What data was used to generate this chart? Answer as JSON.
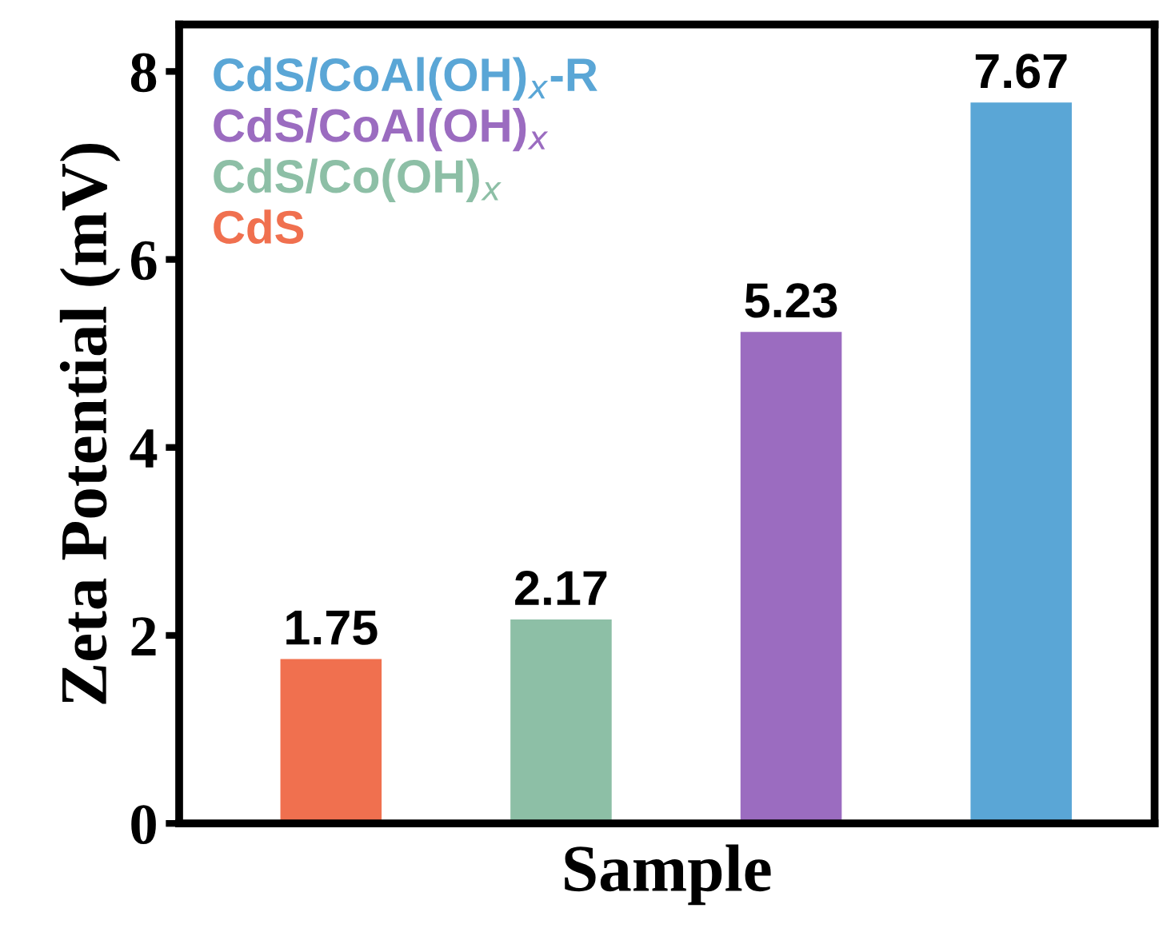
{
  "chart_data": {
    "type": "bar",
    "xlabel": "Sample",
    "ylabel": "Zeta Potential (mV)",
    "categories": [
      null,
      null,
      null,
      null
    ],
    "series": [
      {
        "name": "CdS/CoAl(OH)$_{x}$-R",
        "color": "#5aa6d6",
        "values": [
          null,
          null,
          null,
          7.67
        ]
      },
      {
        "name": "CdS/CoAl(OH)$_{x}$",
        "color": "#9b6cc0",
        "values": [
          null,
          null,
          5.23,
          null
        ]
      },
      {
        "name": "CdS/Co(OH)$_{x}$",
        "color": "#8dbfa6",
        "values": [
          null,
          2.17,
          null,
          null
        ]
      },
      {
        "name": "CdS",
        "color": "#f0704f",
        "values": [
          1.75,
          null,
          null,
          null
        ]
      }
    ],
    "ylim": [
      0,
      8.5
    ],
    "yticks": [
      0,
      2,
      4,
      6,
      8
    ],
    "data_labels": true,
    "legend": "top left",
    "grid": false
  }
}
